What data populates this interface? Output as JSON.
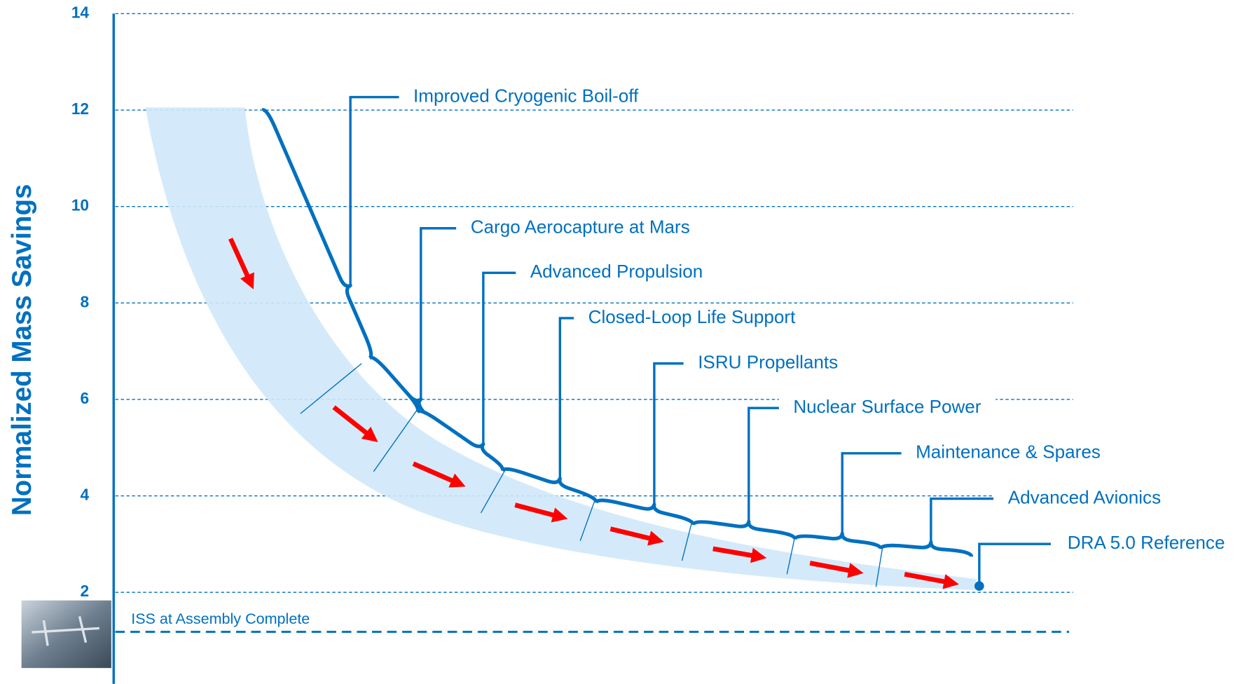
{
  "chart_data": {
    "type": "brace-steps",
    "y_label": "Normalized Mass Savings",
    "ylim": [
      0.1,
      14
    ],
    "yticks": [
      2,
      4,
      6,
      8,
      10,
      12,
      14
    ],
    "grid": true,
    "color": "#0070c0",
    "arrow_color": "#ff0000",
    "start_value": 12,
    "steps": [
      {
        "label": "Improved Cryogenic Boil-off",
        "value": 6.86
      },
      {
        "label": "Cargo Aerocapture at Mars",
        "value": 5.74
      },
      {
        "label": "Advanced Propulsion",
        "value": 4.52
      },
      {
        "label": "Closed-Loop Life Support",
        "value": 3.86
      },
      {
        "label": "ISRU Propellants",
        "value": 3.4
      },
      {
        "label": "Nuclear Surface Power",
        "value": 3.1
      },
      {
        "label": "Maintenance & Spares",
        "value": 2.9
      },
      {
        "label": "Advanced Avionics",
        "value": 2.74
      }
    ],
    "reference": {
      "label": "DRA 5.0 Reference",
      "value": 2.13
    },
    "baseline": {
      "label": "ISS at Assembly Complete",
      "value": 1.18
    }
  }
}
